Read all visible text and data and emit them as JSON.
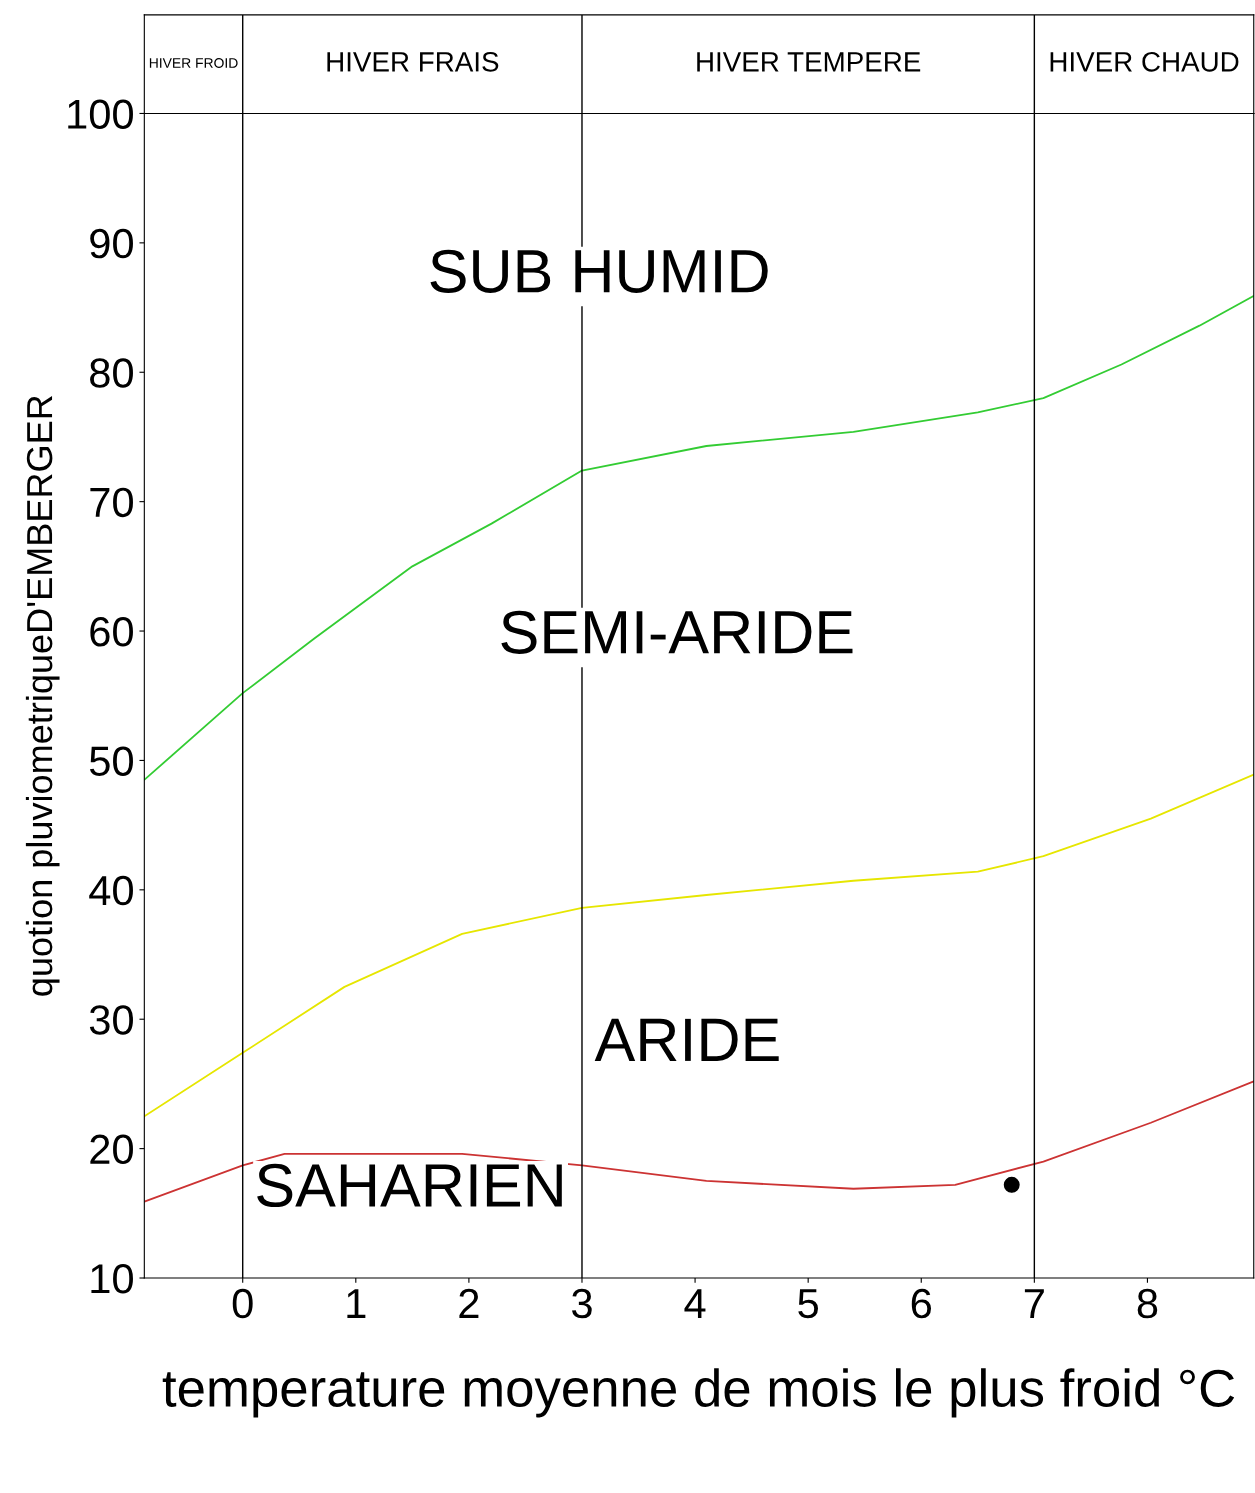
{
  "chart_data": {
    "type": "line",
    "xlabel": "temperature moyenne de mois le plus froid °C",
    "ylabel": "quotion pluviometriqueD'EMBERGER",
    "xlim": [
      -0.87,
      8.94
    ],
    "ylim": [
      10,
      100
    ],
    "xticks": [
      0,
      1,
      2,
      3,
      4,
      5,
      6,
      7,
      8
    ],
    "yticks": [
      10,
      20,
      30,
      40,
      50,
      60,
      70,
      80,
      90,
      100
    ],
    "grid": false,
    "legend": false,
    "line_style": "solid",
    "series": [
      {
        "color": "#33cc33",
        "x": [
          -0.87,
          0,
          0.63,
          1.5,
          2.2,
          3,
          4.1,
          5.4,
          6.5,
          7.08,
          7.77,
          8.46,
          8.94
        ],
        "values": [
          48.5,
          55.2,
          59.4,
          65,
          68.3,
          72.4,
          74.3,
          75.4,
          76.9,
          78,
          80.6,
          83.6,
          85.9
        ]
      },
      {
        "color": "#e6e600",
        "x": [
          -0.87,
          0,
          0.9,
          1.94,
          3,
          4.1,
          5.4,
          6.5,
          7.08,
          8.03,
          8.94
        ],
        "values": [
          22.5,
          27.4,
          32.5,
          36.6,
          38.6,
          39.6,
          40.7,
          41.4,
          42.6,
          45.5,
          48.9
        ]
      },
      {
        "color": "#cc3333",
        "x": [
          -0.87,
          0,
          0.37,
          1.94,
          3,
          4.1,
          5.4,
          6.3,
          7.08,
          8.03,
          8.94
        ],
        "values": [
          15.9,
          18.7,
          19.6,
          19.6,
          18.7,
          17.5,
          16.9,
          17.2,
          19,
          22,
          25.2
        ]
      },
      {
        "type": "scatter",
        "color": "#000000",
        "x": [
          6.8
        ],
        "values": [
          17.2
        ]
      }
    ],
    "ref_lines": [
      {
        "axis": "x",
        "value": 0,
        "color": "#000000"
      },
      {
        "axis": "x",
        "value": 3,
        "color": "#000000"
      },
      {
        "axis": "x",
        "value": 7,
        "color": "#000000"
      }
    ],
    "annotations": [
      "HIVER FROID",
      "HIVER FRAIS",
      "HIVER TEMPERE",
      "HIVER CHAUD",
      "SUB HUMID",
      "SEMI-ARIDE",
      "ARIDE",
      "SAHARIEN"
    ]
  }
}
